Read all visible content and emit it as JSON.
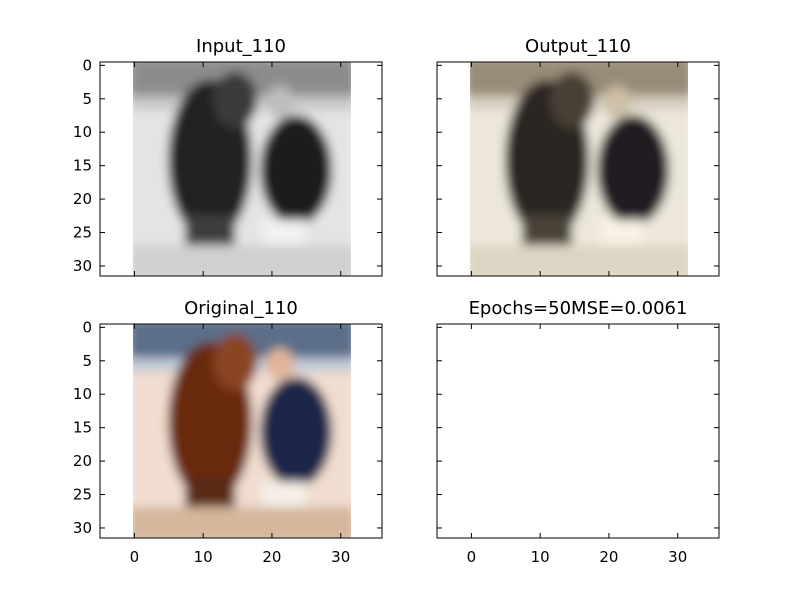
{
  "chart_data": [
    {
      "type": "image",
      "title": "Input_110",
      "xlim": [
        -5,
        36
      ],
      "ylim": [
        31.5,
        -0.5
      ],
      "image_extent": [
        -0.5,
        31.5
      ],
      "yticks": [
        0,
        5,
        10,
        15,
        20,
        25,
        30
      ],
      "xticks": [],
      "image": "grayscale horse and man",
      "palette": {
        "background": "#e6e6e6",
        "dark": "#1e1e1e",
        "mid": "#7a7a7a",
        "light": "#f4f4f4"
      }
    },
    {
      "type": "image",
      "title": "Output_110",
      "xlim": [
        -5,
        36
      ],
      "ylim": [
        31.5,
        -0.5
      ],
      "image_extent": [
        -0.5,
        31.5
      ],
      "yticks": [],
      "xticks": [],
      "image": "sepia reconstruction of horse and man",
      "palette": {
        "background": "#ece8dc",
        "dark": "#2c2620",
        "mid": "#8e8270",
        "light": "#f6f2e6"
      }
    },
    {
      "type": "image",
      "title": "Original_110",
      "xlim": [
        -5,
        36
      ],
      "ylim": [
        31.5,
        -0.5
      ],
      "image_extent": [
        -0.5,
        31.5
      ],
      "yticks": [
        0,
        5,
        10,
        15,
        20,
        25,
        30
      ],
      "xticks": [
        0,
        10,
        20,
        30
      ],
      "image": "color photo of brown horse and man in dark suit",
      "palette": {
        "background": "#f2dfd2",
        "horse": "#6b2f12",
        "suit": "#1d2a4d",
        "light": "#f7ebe2",
        "sky": "#b9c6d6"
      }
    },
    {
      "type": "empty",
      "title": "Epochs=50MSE=0.0061",
      "xlim": [
        -5,
        36
      ],
      "ylim": [
        31.5,
        -0.5
      ],
      "yticks": [],
      "xticks": [
        0,
        10,
        20,
        30
      ]
    }
  ]
}
